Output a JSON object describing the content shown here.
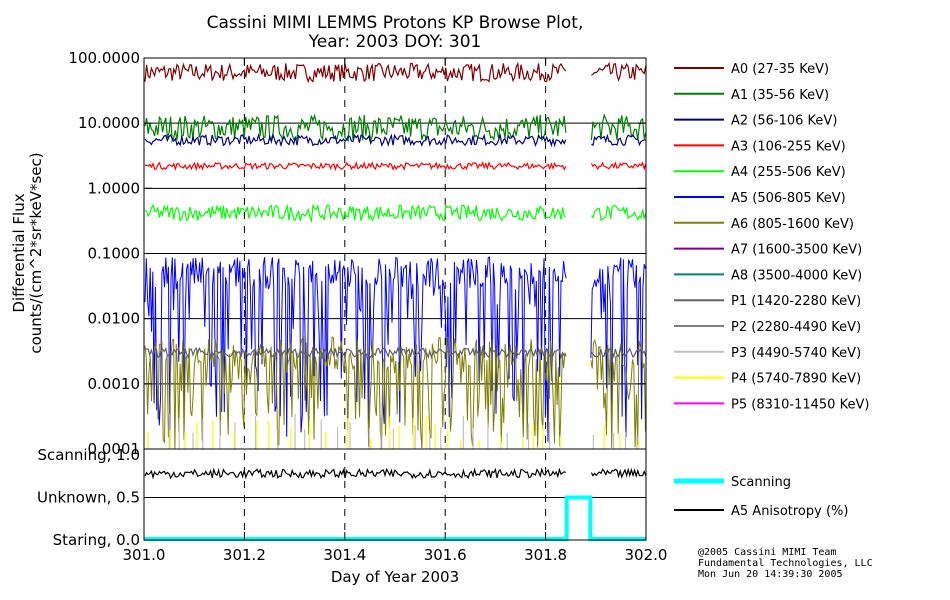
{
  "chart_data": {
    "type": "line",
    "title": "Cassini MIMI LEMMS Protons KP Browse Plot,",
    "subtitle": "Year: 2003 DOY: 301",
    "xlabel": "Day of Year 2003",
    "ylabel_line1": "Differential Flux",
    "ylabel_line2": "counts/(cm^2*sr*keV*sec)",
    "xlim": [
      301.0,
      302.0
    ],
    "x_ticks": [
      "301.0",
      "301.2",
      "301.4",
      "301.6",
      "301.8",
      "302.0"
    ],
    "x_tick_values": [
      301.0,
      301.2,
      301.4,
      301.6,
      301.8,
      302.0
    ],
    "y_scale": "log",
    "ylim": [
      0.0001,
      100.0
    ],
    "y_ticks": [
      "100.0000",
      "10.0000",
      "1.0000",
      "0.1000",
      "0.0100",
      "0.0010",
      "0.0001"
    ],
    "y_tick_values": [
      100,
      10,
      1,
      0.1,
      0.01,
      0.001,
      0.0001
    ],
    "data_gap": [
      301.842,
      301.889
    ],
    "flux_series": [
      {
        "name": "A0 (27-35 KeV)",
        "color": "#800000",
        "level": 60,
        "spread": 0.14
      },
      {
        "name": "A1 (35-56 KeV)",
        "color": "#008000",
        "level": 8.5,
        "spread": 0.2
      },
      {
        "name": "A2 (56-106 KeV)",
        "color": "#000080",
        "level": 5.5,
        "spread": 0.08
      },
      {
        "name": "A3 (106-255 KeV)",
        "color": "#ff0000",
        "level": 2.2,
        "spread": 0.05
      },
      {
        "name": "A4 (255-506 KeV)",
        "color": "#00ff00",
        "level": 0.42,
        "spread": 0.12
      },
      {
        "name": "A5 (506-805 KeV)",
        "color": "#0000ff",
        "level": 0.05,
        "spread": 0.9
      },
      {
        "name": "A6 (805-1600 KeV)",
        "color": "#808000",
        "level": 0.003,
        "spread": 1.0
      },
      {
        "name": "A7 (1600-3500 KeV)",
        "color": "#800080",
        "level": null,
        "spread": 0
      },
      {
        "name": "A8 (3500-4000 KeV)",
        "color": "#008080",
        "level": null,
        "spread": 0
      },
      {
        "name": "P1 (1420-2280 KeV)",
        "color": "#606060",
        "level": 0.003,
        "spread": 0.07
      },
      {
        "name": "P2 (2280-4490 KeV)",
        "color": "#808080",
        "level": null,
        "spread": 0
      },
      {
        "name": "P3 (4490-5740 KeV)",
        "color": "#c0c0c0",
        "level": 0.00015,
        "spread": 0.3
      },
      {
        "name": "P4 (5740-7890 KeV)",
        "color": "#ffff00",
        "level": 0.00013,
        "spread": 0.3
      },
      {
        "name": "P5 (8310-11450 KeV)",
        "color": "#ff00ff",
        "level": null,
        "spread": 0
      }
    ],
    "mode_panel": {
      "ytick_labels": [
        "Scanning, 1.0",
        "Unknown, 0.5",
        "Staring, 0.0"
      ],
      "ytick_values": [
        1.0,
        0.5,
        0.0
      ],
      "scanning_series": {
        "name": "Scanning",
        "color": "#00ffff",
        "points": [
          [
            301.0,
            0.0
          ],
          [
            301.842,
            0.0
          ],
          [
            301.842,
            0.5
          ],
          [
            301.889,
            0.5
          ],
          [
            301.889,
            0.0
          ],
          [
            302.0,
            0.0
          ]
        ]
      },
      "anisotropy_series": {
        "name": "A5 Anisotropy (%)",
        "color": "#000000",
        "level": 0.78,
        "spread": 0.05
      }
    }
  },
  "credit": {
    "line1": "@2005 Cassini MIMI Team",
    "line2": "Fundamental Technologies, LLC",
    "line3": "Mon Jun 20 14:39:30 2005"
  }
}
